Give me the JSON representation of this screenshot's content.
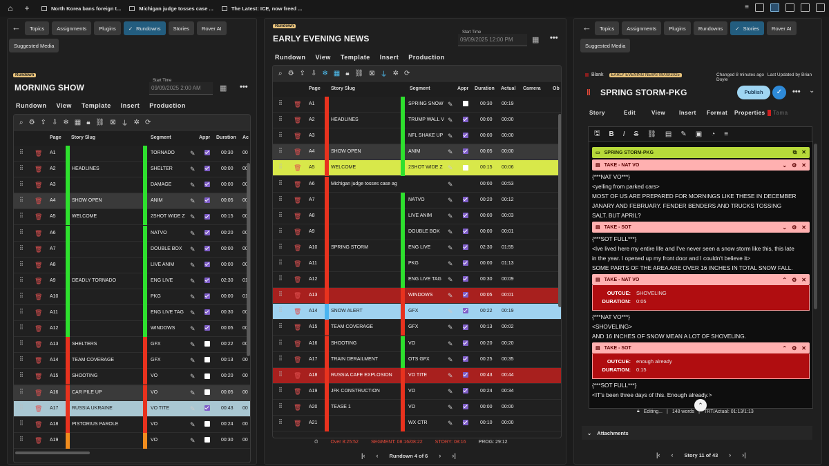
{
  "browser": {
    "tabs": [
      "North Korea bans foreign t...",
      "Michigan judge tosses case ...",
      "The Latest: ICE, now freed ..."
    ]
  },
  "left": {
    "nav": [
      "Topics",
      "Assignments",
      "Plugins",
      "Rundowns",
      "Stories",
      "Rover AI"
    ],
    "nav_active": "Rundowns",
    "suggested": "Suggested Media",
    "tag": "Rundown",
    "title": "MORNING SHOW",
    "start_label": "Start Time",
    "start_value": "09/09/2025 2:00 AM",
    "menu": [
      "Rundown",
      "View",
      "Template",
      "Insert",
      "Production"
    ],
    "columns": [
      "Page",
      "Story Slug",
      "Segment",
      "Appr",
      "Duration",
      "Ac"
    ],
    "rows": [
      {
        "page": "A1",
        "slug": "",
        "seg": "TORNADO",
        "appr": true,
        "dur": "00:30",
        "act": "00"
      },
      {
        "page": "A2",
        "slug": "HEADLINES",
        "seg": "SHELTER",
        "appr": true,
        "dur": "00:00",
        "act": "00"
      },
      {
        "page": "A3",
        "slug": "",
        "seg": "DAMAGE",
        "appr": true,
        "dur": "00:00",
        "act": "00"
      },
      {
        "page": "A4",
        "slug": "SHOW OPEN",
        "seg": "ANIM",
        "appr": true,
        "dur": "00:05",
        "act": "00"
      },
      {
        "page": "A5",
        "slug": "WELCOME",
        "seg": "2SHOT WIDE Z",
        "appr": true,
        "dur": "00:15",
        "act": "00"
      },
      {
        "page": "A6",
        "slug": "",
        "seg": "NATVO",
        "appr": true,
        "dur": "00:20",
        "act": "00"
      },
      {
        "page": "A7",
        "slug": "",
        "seg": "DOUBLE BOX",
        "appr": true,
        "dur": "00:00",
        "act": "00"
      },
      {
        "page": "A8",
        "slug": "",
        "seg": "LIVE ANIM",
        "appr": true,
        "dur": "00:00",
        "act": "00"
      },
      {
        "page": "A9",
        "slug": "DEADLY TORNADO",
        "seg": "ENG LIVE",
        "appr": true,
        "dur": "02:30",
        "act": "01"
      },
      {
        "page": "A10",
        "slug": "",
        "seg": "PKG",
        "appr": true,
        "dur": "00:00",
        "act": "01"
      },
      {
        "page": "A11",
        "slug": "",
        "seg": "ENG LIVE TAG",
        "appr": true,
        "dur": "00:30",
        "act": "00"
      },
      {
        "page": "A12",
        "slug": "",
        "seg": "WINDOWS",
        "appr": true,
        "dur": "00:05",
        "act": "00"
      },
      {
        "page": "A13",
        "slug": "SHELTERS",
        "seg": "GFX",
        "appr": false,
        "dur": "00:22",
        "act": "00"
      },
      {
        "page": "A14",
        "slug": "TEAM COVERAGE",
        "seg": "GFX",
        "appr": false,
        "dur": "00:13",
        "act": "00"
      },
      {
        "page": "A15",
        "slug": "SHOOTING",
        "seg": "VO",
        "appr": false,
        "dur": "00:20",
        "act": "00"
      },
      {
        "page": "A16",
        "slug": "CAR PILE UP",
        "seg": "VO",
        "appr": false,
        "dur": "00:05",
        "act": "00"
      },
      {
        "page": "A17",
        "slug": "RUSSIA UKRAINE",
        "seg": "VO TITE",
        "appr": true,
        "dur": "00:43",
        "act": "00"
      },
      {
        "page": "A18",
        "slug": "PISTORIUS PAROLE",
        "seg": "VO",
        "appr": false,
        "dur": "00:24",
        "act": "00"
      },
      {
        "page": "A19",
        "slug": "",
        "seg": "VO",
        "appr": false,
        "dur": "00:30",
        "act": "00"
      }
    ]
  },
  "middle": {
    "tag": "Rundown",
    "title": "EARLY EVENING NEWS",
    "start_label": "Start Time",
    "start_value": "09/09/2025 12:00 PM",
    "menu": [
      "Rundown",
      "View",
      "Template",
      "Insert",
      "Production"
    ],
    "columns": [
      "Page",
      "Story Slug",
      "Segment",
      "Appr",
      "Duration",
      "Actual",
      "Camera",
      "Ob"
    ],
    "rows": [
      {
        "page": "A1",
        "slug": "",
        "seg": "SPRING SNOW",
        "appr": false,
        "dur": "00:30",
        "act": "00:19"
      },
      {
        "page": "A2",
        "slug": "HEADLINES",
        "seg": "TRUMP WALL V",
        "appr": true,
        "dur": "00:00",
        "act": "00:00"
      },
      {
        "page": "A3",
        "slug": "",
        "seg": "NFL SHAKE UP",
        "appr": true,
        "dur": "00:00",
        "act": "00:00"
      },
      {
        "page": "A4",
        "slug": "SHOW OPEN",
        "seg": "ANIM",
        "appr": true,
        "dur": "00:05",
        "act": "00:00"
      },
      {
        "page": "A5",
        "slug": "WELCOME",
        "seg": "2SHOT WIDE Z",
        "appr": false,
        "dur": "00:15",
        "act": "00:06"
      },
      {
        "page": "A6",
        "slug": "Michigan judge tosses case ag",
        "seg": "",
        "appr": null,
        "dur": "00:00",
        "act": "00:53"
      },
      {
        "page": "A7",
        "slug": "",
        "seg": "NATVO",
        "appr": true,
        "dur": "00:20",
        "act": "00:12"
      },
      {
        "page": "A8",
        "slug": "",
        "seg": "LIVE ANIM",
        "appr": true,
        "dur": "00:00",
        "act": "00:03"
      },
      {
        "page": "A9",
        "slug": "",
        "seg": "DOUBLE BOX",
        "appr": true,
        "dur": "00:00",
        "act": "00:01"
      },
      {
        "page": "A10",
        "slug": "SPRING STORM",
        "seg": "ENG LIVE",
        "appr": true,
        "dur": "02:30",
        "act": "01:55"
      },
      {
        "page": "A11",
        "slug": "",
        "seg": "PKG",
        "appr": true,
        "dur": "00:00",
        "act": "01:13"
      },
      {
        "page": "A12",
        "slug": "",
        "seg": "ENG LIVE TAG",
        "appr": true,
        "dur": "00:30",
        "act": "00:09"
      },
      {
        "page": "A13",
        "slug": "",
        "seg": "WINDOWS",
        "appr": true,
        "dur": "00:05",
        "act": "00:01"
      },
      {
        "page": "A14",
        "slug": "SNOW ALERT",
        "seg": "GFX",
        "appr": true,
        "dur": "00:22",
        "act": "00:19"
      },
      {
        "page": "A15",
        "slug": "TEAM COVERAGE",
        "seg": "GFX",
        "appr": true,
        "dur": "00:13",
        "act": "00:02"
      },
      {
        "page": "A16",
        "slug": "SHOOTING",
        "seg": "VO",
        "appr": true,
        "dur": "00:20",
        "act": "00:20"
      },
      {
        "page": "A17",
        "slug": "TRAIN DERAILMENT",
        "seg": "OTS GFX",
        "appr": true,
        "dur": "00:25",
        "act": "00:35"
      },
      {
        "page": "A18",
        "slug": "RUSSIA CAFE EXPLOSION",
        "seg": "VO TITE",
        "appr": true,
        "dur": "00:43",
        "act": "00:44"
      },
      {
        "page": "A19",
        "slug": "JFK CONSTRUCTION",
        "seg": "VO",
        "appr": true,
        "dur": "00:24",
        "act": "00:34"
      },
      {
        "page": "A20",
        "slug": "TEASE 1",
        "seg": "VO",
        "appr": true,
        "dur": "00:00",
        "act": "00:00"
      },
      {
        "page": "A21",
        "slug": "",
        "seg": "WX CTR",
        "appr": true,
        "dur": "00:10",
        "act": "00:00"
      }
    ],
    "status": {
      "over": "Over 8:25:52",
      "segment": "SEGMENT: 08:16/08:22",
      "story": "STORY: 08:16",
      "prog": "PROG: 29:12"
    },
    "pager": "Rundown 4 of 6"
  },
  "right": {
    "nav": [
      "Topics",
      "Assignments",
      "Plugins",
      "Rundowns",
      "Stories",
      "Rover AI"
    ],
    "nav_active": "Stories",
    "suggested": "Suggested Media",
    "blank": "Blank",
    "rundown_tag": "EARLY EVENING NEWS 09/09/2025",
    "changed": "Changed 8 minutes ago",
    "updated": "Last Updated by Brian Doyle",
    "title": "SPRING STORM-PKG",
    "publish": "Publish",
    "menu": [
      "Story",
      "Edit",
      "View",
      "Insert",
      "Format",
      "Properties",
      "Tama"
    ],
    "blocks": {
      "pkg": "SPRING STORM-PKG",
      "take1": "TAKE - NAT VO",
      "take2": "TAKE - SOT",
      "take3": "TAKE - NAT VO",
      "take4": "TAKE - SOT"
    },
    "lines": {
      "l1": "{***NAT VO***}",
      "l2": "<yelling from parked cars>",
      "l3": "MOST OF US ARE PREPARED FOR MORNINGS LIKE THESE IN DECEMBER",
      "l4": "JANARY AND FEBRUARY. FENDER BENDERS AND TRUCKS TOSSING",
      "l5": "SALT. BUT APRIL?",
      "l6": "{***SOT FULL***}",
      "l7": "<Ive lived here my entire life and I've never seen a snow storm like this, this late",
      "l8": "in the year. I opened up my front door and I couldn't believe it>",
      "l9": "SOME PARTS OF THE AREA ARE OVER 16 INCHES IN TOTAL SNOW FALL.",
      "l10": "{***NAT VO***}",
      "l11": "<SHOVELING>",
      "l12": "AND 16 INCHES OF SNOW MEAN A LOT OF SHOVELING.",
      "l13": "{***SOT FULL***}",
      "l14": "<IT's been three days of this. Enough already.>"
    },
    "take3_detail": {
      "outcue_label": "OUTCUE:",
      "outcue": "SHOVELING",
      "dur_label": "DURATION:",
      "dur": "0:05"
    },
    "take4_detail": {
      "outcue_label": "OUTCUE:",
      "outcue": "enough already",
      "dur_label": "DURATION:",
      "dur": "0:15"
    },
    "editing": "Editing...",
    "words": "148 words",
    "trt": "TRT/Actual: 01:13/1:13",
    "attachments": "Attachments",
    "pager": "Story 11 of 43"
  },
  "colors": {
    "green": "#2ee02e",
    "red": "#e8321e",
    "orange": "#f08c1e",
    "accent": "#235d7f",
    "highlight_yellow": "#d8e84a",
    "row_red": "#a8201e",
    "row_blue": "#9fd2f0"
  }
}
